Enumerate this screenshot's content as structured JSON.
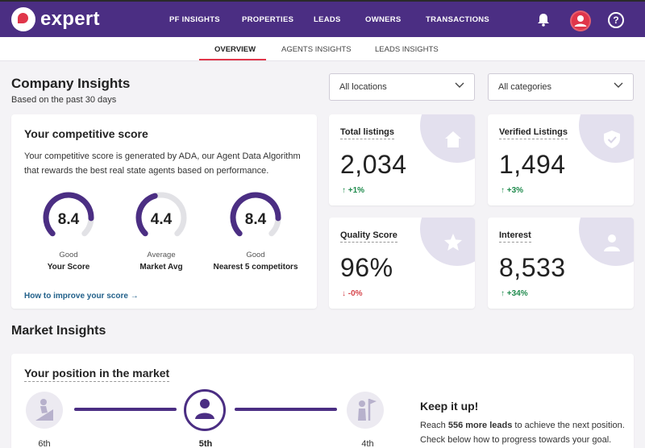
{
  "brand": {
    "name": "expert",
    "accent": "#e0364a",
    "primary": "#4b2e83"
  },
  "nav": {
    "items": [
      "PF INSIGHTS",
      "PROPERTIES",
      "LEADS",
      "OWNERS",
      "TRANSACTIONS"
    ],
    "icons": [
      "bell-icon",
      "user-icon",
      "help-icon"
    ],
    "help_glyph": "?"
  },
  "subtabs": {
    "items": [
      "OVERVIEW",
      "AGENTS INSIGHTS",
      "LEADS INSIGHTS"
    ],
    "active": "OVERVIEW"
  },
  "header": {
    "title": "Company Insights",
    "subtitle": "Based on the past 30 days"
  },
  "filters": {
    "locations": "All locations",
    "categories": "All categories"
  },
  "score": {
    "title": "Your competitive score",
    "description": "Your competitive score is generated by ADA, our Agent Data Algorithm that rewards the best real state agents based on performance.",
    "gauges": [
      {
        "value": "8.4",
        "quality": "Good",
        "label": "Your Score",
        "fill": 0.84
      },
      {
        "value": "4.4",
        "quality": "Average",
        "label": "Market Avg",
        "fill": 0.44
      },
      {
        "value": "8.4",
        "quality": "Good",
        "label": "Nearest 5 competitors",
        "fill": 0.84
      }
    ],
    "improve_link": "How to improve your score →"
  },
  "stats": [
    {
      "label": "Total listings",
      "value": "2,034",
      "delta": "↑ +1%",
      "trend": "up",
      "icon": "home-icon"
    },
    {
      "label": "Verified Listings",
      "value": "1,494",
      "delta": "↑ +3%",
      "trend": "up",
      "icon": "shield-check-icon"
    },
    {
      "label": "Quality Score",
      "value": "96%",
      "delta": "↓ -0%",
      "trend": "down",
      "icon": "star-icon"
    },
    {
      "label": "Interest",
      "value": "8,533",
      "delta": "↑ +34%",
      "trend": "up",
      "icon": "person-icon"
    }
  ],
  "market": {
    "title": "Market Insights",
    "position_title": "Your position in the market",
    "rungs": [
      "6th",
      "5th",
      "4th"
    ],
    "keep_title": "Keep it up!",
    "keep_pre": "Reach ",
    "keep_bold": "556 more leads",
    "keep_post": " to achieve the next position. Check below how to progress towards your goal."
  }
}
